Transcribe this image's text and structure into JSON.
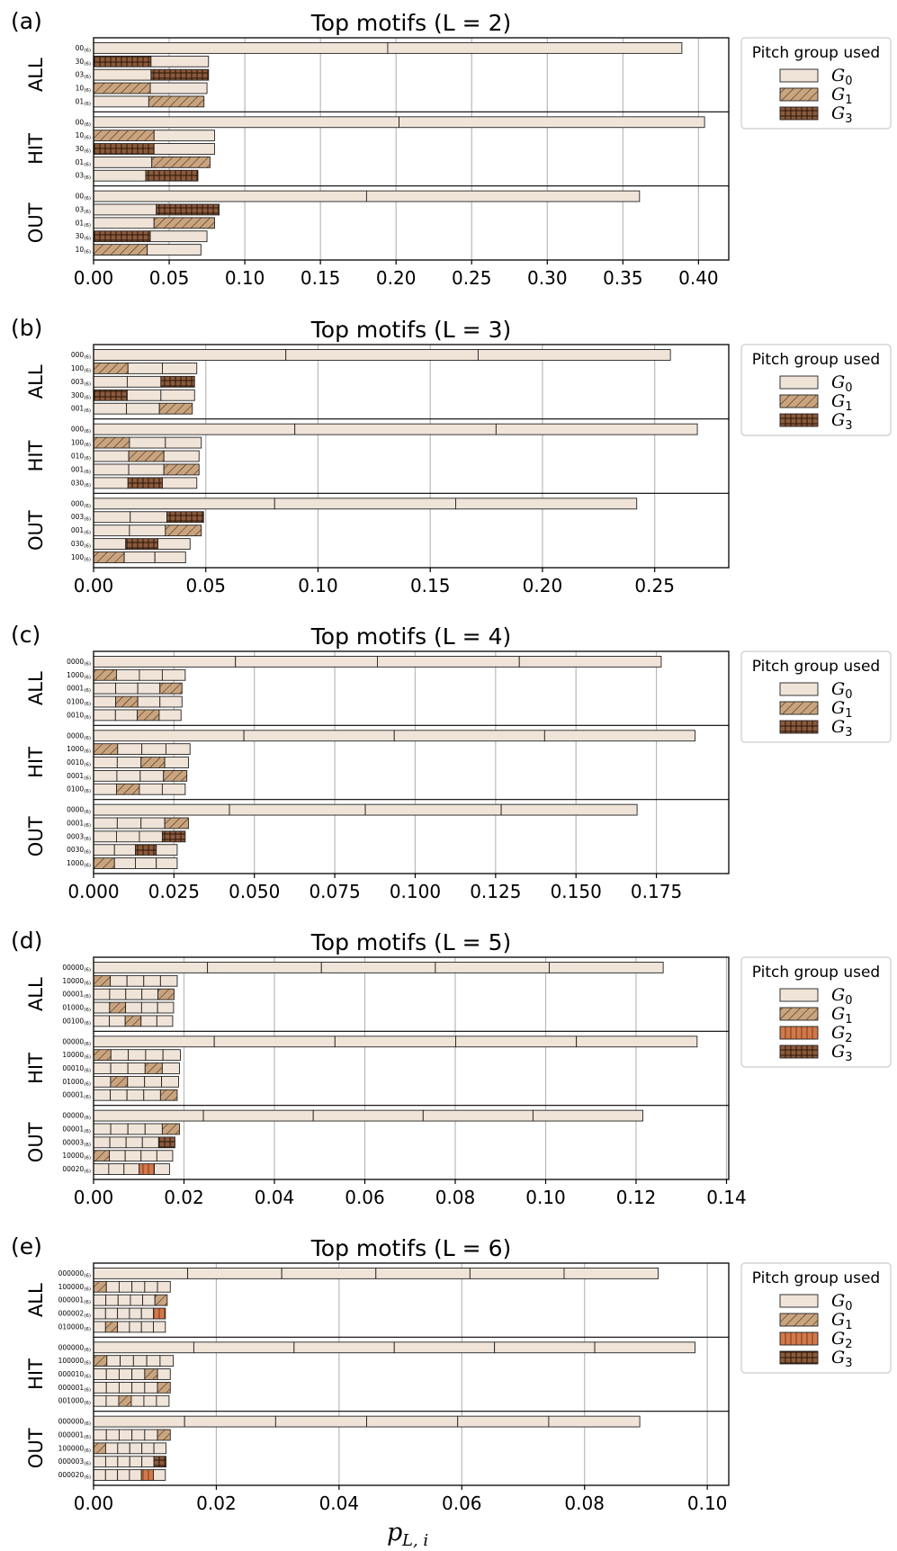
{
  "chart_data": {
    "type": "bar",
    "orientation": "horizontal-stacked",
    "xlabel": "p",
    "xlabel_sub": "L, i",
    "legend_title": "Pitch group used",
    "group_colors": {
      "0": "#f0e4d9",
      "1": "#c9a47e",
      "2": "#d2784a",
      "3": "#8b5a3c"
    },
    "panels": [
      {
        "label": "(a)",
        "title": "Top motifs (L = 2)",
        "L": 2,
        "xmax": 0.42,
        "ticks": [
          0.0,
          0.05,
          0.1,
          0.15,
          0.2,
          0.25,
          0.3,
          0.35,
          0.4
        ],
        "tick_labels": [
          "0.00",
          "0.05",
          "0.10",
          "0.15",
          "0.20",
          "0.25",
          "0.30",
          "0.35",
          "0.40"
        ],
        "legend": [
          {
            "g": "0",
            "text": "G",
            "sub": "0"
          },
          {
            "g": "1",
            "text": "G",
            "sub": "1"
          },
          {
            "g": "3",
            "text": "G",
            "sub": "3"
          }
        ],
        "groups": [
          {
            "name": "ALL",
            "rows": [
              {
                "motif": "00",
                "value": 0.389
              },
              {
                "motif": "30",
                "value": 0.076
              },
              {
                "motif": "03",
                "value": 0.076
              },
              {
                "motif": "10",
                "value": 0.075
              },
              {
                "motif": "01",
                "value": 0.073
              }
            ]
          },
          {
            "name": "HIT",
            "rows": [
              {
                "motif": "00",
                "value": 0.404
              },
              {
                "motif": "10",
                "value": 0.08
              },
              {
                "motif": "30",
                "value": 0.08
              },
              {
                "motif": "01",
                "value": 0.077
              },
              {
                "motif": "03",
                "value": 0.069
              }
            ]
          },
          {
            "name": "OUT",
            "rows": [
              {
                "motif": "00",
                "value": 0.361
              },
              {
                "motif": "03",
                "value": 0.083
              },
              {
                "motif": "01",
                "value": 0.08
              },
              {
                "motif": "30",
                "value": 0.075
              },
              {
                "motif": "10",
                "value": 0.071
              }
            ]
          }
        ]
      },
      {
        "label": "(b)",
        "title": "Top motifs (L = 3)",
        "L": 3,
        "xmax": 0.283,
        "ticks": [
          0.0,
          0.05,
          0.1,
          0.15,
          0.2,
          0.25
        ],
        "tick_labels": [
          "0.00",
          "0.05",
          "0.10",
          "0.15",
          "0.20",
          "0.25"
        ],
        "legend": [
          {
            "g": "0",
            "text": "G",
            "sub": "0"
          },
          {
            "g": "1",
            "text": "G",
            "sub": "1"
          },
          {
            "g": "3",
            "text": "G",
            "sub": "3"
          }
        ],
        "groups": [
          {
            "name": "ALL",
            "rows": [
              {
                "motif": "000",
                "value": 0.257
              },
              {
                "motif": "100",
                "value": 0.046
              },
              {
                "motif": "003",
                "value": 0.045
              },
              {
                "motif": "300",
                "value": 0.045
              },
              {
                "motif": "001",
                "value": 0.044
              }
            ]
          },
          {
            "name": "HIT",
            "rows": [
              {
                "motif": "000",
                "value": 0.269
              },
              {
                "motif": "100",
                "value": 0.048
              },
              {
                "motif": "010",
                "value": 0.047
              },
              {
                "motif": "001",
                "value": 0.047
              },
              {
                "motif": "030",
                "value": 0.046
              }
            ]
          },
          {
            "name": "OUT",
            "rows": [
              {
                "motif": "000",
                "value": 0.242
              },
              {
                "motif": "003",
                "value": 0.049
              },
              {
                "motif": "001",
                "value": 0.048
              },
              {
                "motif": "030",
                "value": 0.043
              },
              {
                "motif": "100",
                "value": 0.041
              }
            ]
          }
        ]
      },
      {
        "label": "(c)",
        "title": "Top motifs (L = 4)",
        "L": 4,
        "xmax": 0.1975,
        "ticks": [
          0.0,
          0.025,
          0.05,
          0.075,
          0.1,
          0.125,
          0.15,
          0.175
        ],
        "tick_labels": [
          "0.000",
          "0.025",
          "0.050",
          "0.075",
          "0.100",
          "0.125",
          "0.150",
          "0.175"
        ],
        "legend": [
          {
            "g": "0",
            "text": "G",
            "sub": "0"
          },
          {
            "g": "1",
            "text": "G",
            "sub": "1"
          },
          {
            "g": "3",
            "text": "G",
            "sub": "3"
          }
        ],
        "groups": [
          {
            "name": "ALL",
            "rows": [
              {
                "motif": "0000",
                "value": 0.1765
              },
              {
                "motif": "1000",
                "value": 0.0285
              },
              {
                "motif": "0001",
                "value": 0.0275
              },
              {
                "motif": "0100",
                "value": 0.0275
              },
              {
                "motif": "0010",
                "value": 0.0272
              }
            ]
          },
          {
            "name": "HIT",
            "rows": [
              {
                "motif": "0000",
                "value": 0.187
              },
              {
                "motif": "1000",
                "value": 0.03
              },
              {
                "motif": "0010",
                "value": 0.0295
              },
              {
                "motif": "0001",
                "value": 0.029
              },
              {
                "motif": "0100",
                "value": 0.0285
              }
            ]
          },
          {
            "name": "OUT",
            "rows": [
              {
                "motif": "0000",
                "value": 0.169
              },
              {
                "motif": "0001",
                "value": 0.0295
              },
              {
                "motif": "0003",
                "value": 0.0285
              },
              {
                "motif": "0030",
                "value": 0.026
              },
              {
                "motif": "1000",
                "value": 0.026
              }
            ]
          }
        ]
      },
      {
        "label": "(d)",
        "title": "Top motifs (L = 5)",
        "L": 5,
        "xmax": 0.1405,
        "ticks": [
          0.0,
          0.02,
          0.04,
          0.06,
          0.08,
          0.1,
          0.12,
          0.14
        ],
        "tick_labels": [
          "0.00",
          "0.02",
          "0.04",
          "0.06",
          "0.08",
          "0.10",
          "0.12",
          "0.14"
        ],
        "legend": [
          {
            "g": "0",
            "text": "G",
            "sub": "0"
          },
          {
            "g": "1",
            "text": "G",
            "sub": "1"
          },
          {
            "g": "2",
            "text": "G",
            "sub": "2"
          },
          {
            "g": "3",
            "text": "G",
            "sub": "3"
          }
        ],
        "groups": [
          {
            "name": "ALL",
            "rows": [
              {
                "motif": "00000",
                "value": 0.126
              },
              {
                "motif": "10000",
                "value": 0.0185
              },
              {
                "motif": "00001",
                "value": 0.0178
              },
              {
                "motif": "01000",
                "value": 0.0177
              },
              {
                "motif": "00100",
                "value": 0.0175
              }
            ]
          },
          {
            "name": "HIT",
            "rows": [
              {
                "motif": "00000",
                "value": 0.1335
              },
              {
                "motif": "10000",
                "value": 0.0192
              },
              {
                "motif": "00010",
                "value": 0.019
              },
              {
                "motif": "01000",
                "value": 0.0188
              },
              {
                "motif": "00001",
                "value": 0.0185
              }
            ]
          },
          {
            "name": "OUT",
            "rows": [
              {
                "motif": "00000",
                "value": 0.1215
              },
              {
                "motif": "00001",
                "value": 0.019
              },
              {
                "motif": "00003",
                "value": 0.018
              },
              {
                "motif": "10000",
                "value": 0.0175
              },
              {
                "motif": "00020",
                "value": 0.0168
              }
            ]
          }
        ]
      },
      {
        "label": "(e)",
        "title": "Top motifs (L = 6)",
        "L": 6,
        "xmax": 0.1035,
        "ticks": [
          0.0,
          0.02,
          0.04,
          0.06,
          0.08,
          0.1
        ],
        "tick_labels": [
          "0.00",
          "0.02",
          "0.04",
          "0.06",
          "0.08",
          "0.10"
        ],
        "legend": [
          {
            "g": "0",
            "text": "G",
            "sub": "0"
          },
          {
            "g": "1",
            "text": "G",
            "sub": "1"
          },
          {
            "g": "2",
            "text": "G",
            "sub": "2"
          },
          {
            "g": "3",
            "text": "G",
            "sub": "3"
          }
        ],
        "groups": [
          {
            "name": "ALL",
            "rows": [
              {
                "motif": "000000",
                "value": 0.092
              },
              {
                "motif": "100000",
                "value": 0.0125
              },
              {
                "motif": "000001",
                "value": 0.012
              },
              {
                "motif": "000002",
                "value": 0.0117
              },
              {
                "motif": "010000",
                "value": 0.0117
              }
            ]
          },
          {
            "name": "HIT",
            "rows": [
              {
                "motif": "000000",
                "value": 0.098
              },
              {
                "motif": "100000",
                "value": 0.013
              },
              {
                "motif": "000010",
                "value": 0.0125
              },
              {
                "motif": "000001",
                "value": 0.0125
              },
              {
                "motif": "001000",
                "value": 0.0123
              }
            ]
          },
          {
            "name": "OUT",
            "rows": [
              {
                "motif": "000000",
                "value": 0.089
              },
              {
                "motif": "000001",
                "value": 0.0125
              },
              {
                "motif": "100000",
                "value": 0.0118
              },
              {
                "motif": "000003",
                "value": 0.0118
              },
              {
                "motif": "000020",
                "value": 0.0117
              }
            ]
          }
        ]
      }
    ]
  }
}
